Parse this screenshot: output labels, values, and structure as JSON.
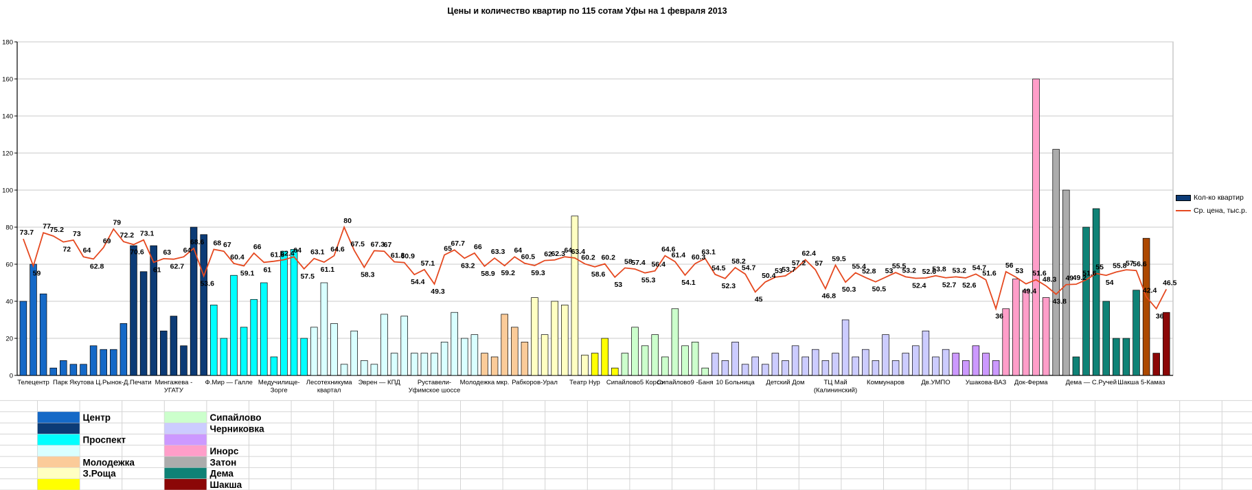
{
  "title": "Цены и количество квартир по 115 сотам Уфы на 1 февраля 2013",
  "legend": {
    "bar_label": "Кол-ко квартир",
    "line_label": "Ср. цена, тыс.р."
  },
  "chart_data": {
    "type": "bar",
    "title": "Цены и количество квартир по 115 сотам Уфы на 1 февраля 2013",
    "ylabel": "",
    "xlabel": "",
    "ylim": [
      0,
      180
    ],
    "ytick_step": 20,
    "grid": true,
    "legend_position": "right",
    "bar_series_name": "Кол-ко квартир",
    "line_series_name": "Ср. цена, тыс.р.",
    "line_color": "#E5481F",
    "groups": [
      {
        "name": "Центр (светлый)",
        "color": "#1569C7",
        "values": [
          40,
          60,
          44,
          4,
          8,
          6,
          6,
          16,
          14,
          14,
          28
        ]
      },
      {
        "name": "Центр (тёмный)",
        "color": "#0C3B76",
        "values": [
          70,
          56,
          70,
          24,
          32,
          16,
          80,
          76
        ]
      },
      {
        "name": "Проспект (яркий)",
        "color": "#00FFFF",
        "values": [
          38,
          20,
          54,
          26,
          41,
          50,
          10,
          67,
          68,
          20
        ]
      },
      {
        "name": "Проспект (бледный)",
        "color": "#D9FFFF",
        "values": [
          26,
          50,
          28,
          6,
          24,
          8,
          6,
          33,
          12,
          32,
          12,
          12,
          12,
          18,
          34,
          20,
          22
        ]
      },
      {
        "name": "Молодежка",
        "color": "#FBCB99",
        "values": [
          12,
          10,
          33,
          26,
          18
        ]
      },
      {
        "name": "З.Роща (бледный)",
        "color": "#FFFFC2",
        "values": [
          42,
          22,
          40,
          38,
          86,
          11
        ]
      },
      {
        "name": "З.Роща (жёлтый)",
        "color": "#FFFF00",
        "values": [
          12,
          20,
          4
        ]
      },
      {
        "name": "Сипайлово",
        "color": "#CCFFCC",
        "values": [
          12,
          26,
          16,
          22,
          10,
          36,
          16,
          18,
          4
        ]
      },
      {
        "name": "Черниковка (светлая)",
        "color": "#CCCCFF",
        "values": [
          12,
          8,
          18,
          6,
          10,
          6,
          12,
          8,
          16,
          10,
          14,
          8,
          12,
          30,
          10,
          14,
          8,
          22,
          8,
          12,
          16,
          24,
          10,
          14
        ]
      },
      {
        "name": "Черниковка (сиреневая)",
        "color": "#CC99FF",
        "values": [
          12,
          8,
          16,
          12,
          8
        ]
      },
      {
        "name": "Инорс",
        "color": "#FF9EC9",
        "values": [
          36,
          52,
          46,
          160,
          42
        ]
      },
      {
        "name": "Затон",
        "color": "#ACACAC",
        "values": [
          122,
          100
        ]
      },
      {
        "name": "Дема",
        "color": "#0F8276",
        "values": [
          10,
          80,
          90,
          40,
          20,
          20,
          46
        ]
      },
      {
        "name": "Шакша (коричневый)",
        "color": "#AC4800",
        "values": [
          74
        ]
      },
      {
        "name": "Шакша (тёмно-красный)",
        "color": "#8B0707",
        "values": [
          12,
          34
        ]
      }
    ],
    "line_values": [
      73.7,
      59,
      77,
      75.2,
      72,
      73,
      64,
      62.8,
      69,
      79,
      72.2,
      70.6,
      73.1,
      61,
      63,
      62.7,
      64,
      68.6,
      53.6,
      68,
      67,
      60.4,
      59.1,
      66,
      61,
      61.6,
      62.4,
      64,
      57.5,
      63.1,
      61.1,
      64.6,
      80,
      67.5,
      58.3,
      67.3,
      67,
      61.3,
      60.9,
      54.4,
      57.1,
      49.3,
      65,
      67.7,
      63.2,
      66,
      58.9,
      63.3,
      59.2,
      64,
      60.5,
      59.3,
      62,
      62.3,
      64,
      63.4,
      60.2,
      58.6,
      60.2,
      53,
      58,
      57.4,
      55.3,
      56.4,
      64.6,
      61.4,
      54.1,
      60.3,
      63.1,
      54.5,
      52.3,
      58.2,
      54.7,
      45,
      50.4,
      53,
      53.7,
      57.2,
      62.4,
      57,
      46.8,
      59.5,
      50.3,
      55.4,
      52.8,
      50.5,
      53,
      55.5,
      53.2,
      52.4,
      52.6,
      53.8,
      52.7,
      53.2,
      52.6,
      54.7,
      51.6,
      36,
      56,
      53,
      49.4,
      51.6,
      48.3,
      43.8,
      49,
      49.2,
      51.6,
      55,
      54,
      55.8,
      57,
      56.6,
      42.4,
      36,
      46.5
    ],
    "x_labels": [
      {
        "text": "Телецентр",
        "index": 1
      },
      {
        "text": "Парк Якутова",
        "index": 5
      },
      {
        "text": "Ц.Рынок-Д.Печати",
        "index": 10
      },
      {
        "text": "Мингажева -\nУГАТУ",
        "index": 15
      },
      {
        "text": "Ф.Мир — Галле",
        "index": 20.5
      },
      {
        "text": "Медучилище-\nЗорге",
        "index": 25.5
      },
      {
        "text": "Лесотехникума\nквартал",
        "index": 30.5
      },
      {
        "text": "Эврен — КПД",
        "index": 35.5
      },
      {
        "text": "Руставели-\nУфимское шоссе",
        "index": 41
      },
      {
        "text": "Молодежка мкр.",
        "index": 46
      },
      {
        "text": "Рабкоров-Урал",
        "index": 51
      },
      {
        "text": "Театр Нур",
        "index": 56
      },
      {
        "text": "Сипайлово5 Корсо",
        "index": 61
      },
      {
        "text": "Сипайлово9 -Баня",
        "index": 66
      },
      {
        "text": "10 Больница",
        "index": 71
      },
      {
        "text": "Детский Дом",
        "index": 76
      },
      {
        "text": "ТЦ Май\n(Калининский)",
        "index": 81
      },
      {
        "text": "Коммунаров",
        "index": 86
      },
      {
        "text": "Дв.УМПО",
        "index": 91
      },
      {
        "text": "Ушакова-ВАЗ",
        "index": 96
      },
      {
        "text": "Док-Ферма",
        "index": 100.5
      },
      {
        "text": "Дема — С.Ручей",
        "index": 106.5
      },
      {
        "text": "Шакша 5-Камаз",
        "index": 111.5
      }
    ]
  },
  "district_legend": {
    "left": [
      {
        "label": "Центр",
        "color": "#1569C7"
      },
      {
        "label": "",
        "color": "#0C3B76"
      },
      {
        "label": "Проспект",
        "color": "#00FFFF"
      },
      {
        "label": "",
        "color": "#D9FFFF"
      },
      {
        "label": "Молодежка",
        "color": "#FBCB99"
      },
      {
        "label": "З.Роща",
        "color": "#FFFFC2"
      },
      {
        "label": "",
        "color": "#FFFF00"
      }
    ],
    "right": [
      {
        "label": "Сипайлово",
        "color": "#CCFFCC"
      },
      {
        "label": "Черниковка",
        "color": "#CCCCFF"
      },
      {
        "label": "",
        "color": "#CC99FF"
      },
      {
        "label": "Инорс",
        "color": "#FF9EC9"
      },
      {
        "label": "Затон",
        "color": "#ACACAC"
      },
      {
        "label": "Дема",
        "color": "#0F8276"
      },
      {
        "label": "Шакша",
        "color": "#8B0707"
      }
    ]
  },
  "colors": {
    "line": "#E5481F",
    "plot_grid": "#C9C9C9",
    "sheet_grid": "#D4D4D4",
    "axis": "#000000"
  }
}
